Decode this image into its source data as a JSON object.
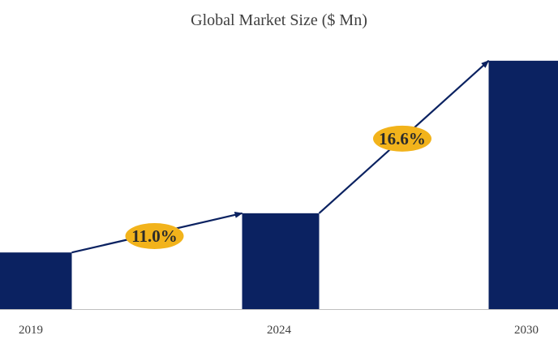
{
  "chart_data": {
    "type": "bar",
    "title": "Global Market Size ($ Mn)",
    "categories": [
      "2019",
      "2024",
      "2030"
    ],
    "values": [
      13,
      22,
      57
    ],
    "ylim": [
      0,
      62
    ],
    "bar_color": "#0b2261",
    "axis_color": "#bfbfbf",
    "grid": false,
    "growth_annotations": [
      {
        "from": "2019",
        "to": "2024",
        "label": "11.0%"
      },
      {
        "from": "2024",
        "to": "2030",
        "label": "16.6%"
      }
    ],
    "annotation_fill": "#f2b31b",
    "annotation_text_color": "#2b2b2b",
    "arrow_color": "#0b2261"
  }
}
